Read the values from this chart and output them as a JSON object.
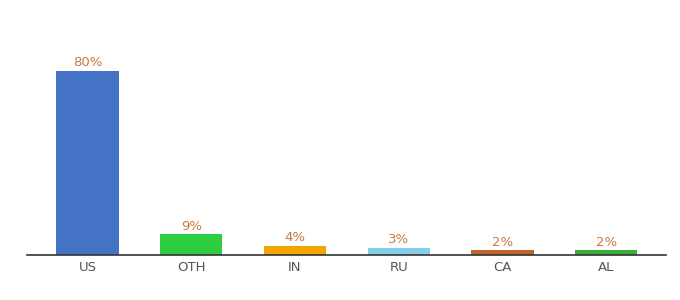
{
  "categories": [
    "US",
    "OTH",
    "IN",
    "RU",
    "CA",
    "AL"
  ],
  "values": [
    80,
    9,
    4,
    3,
    2,
    2
  ],
  "bar_colors": [
    "#4472c4",
    "#2ecc40",
    "#f0a500",
    "#87ceeb",
    "#c0622a",
    "#3aaf3a"
  ],
  "label_color": "#c87941",
  "background_color": "#ffffff",
  "ylim": [
    0,
    95
  ],
  "bar_width": 0.6,
  "label_fontsize": 9.5,
  "tick_fontsize": 9.5,
  "figsize": [
    6.8,
    3.0
  ],
  "dpi": 100
}
